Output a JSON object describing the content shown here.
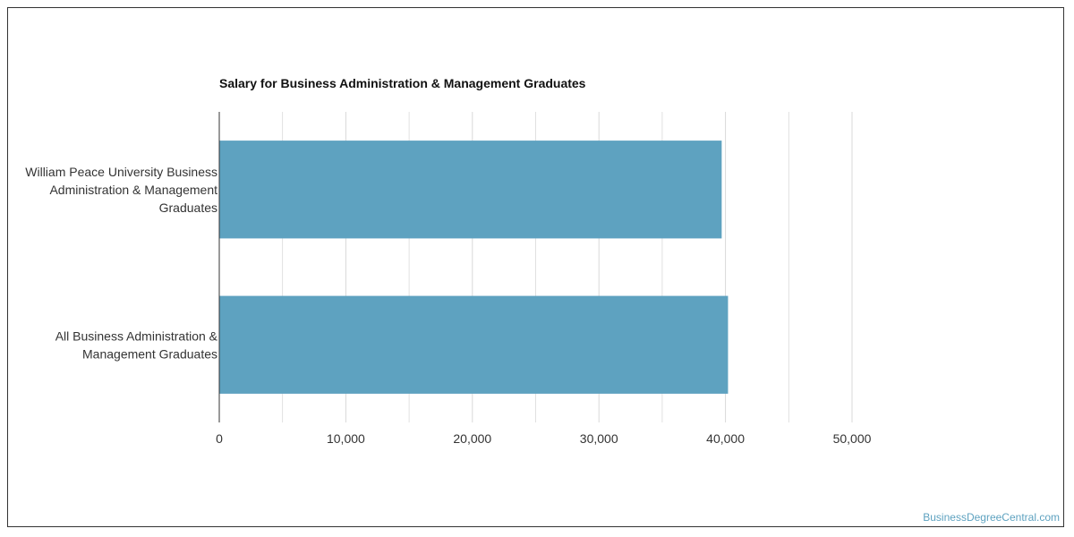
{
  "chart_data": {
    "type": "bar",
    "orientation": "horizontal",
    "title": "Salary for Business Administration & Management Graduates",
    "xlabel": "",
    "ylabel": "",
    "xlim": [
      0,
      60000
    ],
    "tick_values": [
      0,
      10000,
      20000,
      30000,
      40000,
      50000
    ],
    "tick_labels": [
      "0",
      "10,000",
      "20,000",
      "30,000",
      "40,000",
      "50,000"
    ],
    "minor_gridlines": true,
    "grid": true,
    "legend": "none",
    "categories": [
      [
        "William Peace University Business",
        "Administration & Management",
        "Graduates"
      ],
      [
        "All Business Administration &",
        "Management Graduates"
      ]
    ],
    "values": [
      39700,
      40200
    ],
    "bar_color": "#5ea2c0",
    "grid_color": "#d9d9d9",
    "axis_color": "#333333"
  },
  "credit": "BusinessDegreeCentral.com"
}
